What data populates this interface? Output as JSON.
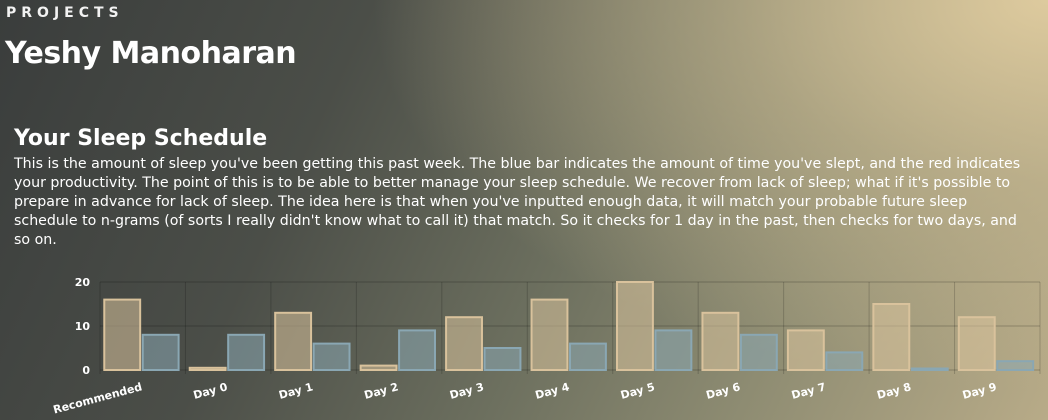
{
  "header": {
    "label": "PROJECTS",
    "title": "Yeshy Manoharan"
  },
  "section": {
    "title": "Your Sleep Schedule",
    "description": "This is the amount of sleep you've been getting this past week. The blue bar indicates the amount of time you've slept, and the red indicates your productivity. The point of this is to be able to better manage your sleep schedule. We recover from lack of sleep; what if it's possible to prepare in advance for lack of sleep. The idea here is that when you've inputted enough data, it will match your probable future sleep schedule to n-grams (of sorts I really didn't know what to call it) that match. So it checks for 1 day in the past, then checks for two days, and so on."
  },
  "chart_data": {
    "type": "bar",
    "categories": [
      "Recommended",
      "Day 0",
      "Day 1",
      "Day 2",
      "Day 3",
      "Day 4",
      "Day 5",
      "Day 6",
      "Day 7",
      "Day 8",
      "Day 9"
    ],
    "series": [
      {
        "values": [
          16,
          0.5,
          13,
          1,
          12,
          16,
          20,
          13,
          9,
          15,
          12
        ],
        "color": "#d9c29c"
      },
      {
        "values": [
          8,
          8,
          6,
          9,
          5,
          6,
          9,
          8,
          4,
          0.3,
          2
        ],
        "color": "#8aa7b3"
      }
    ],
    "ylim": [
      0,
      20
    ],
    "yticks": [
      0,
      10,
      20
    ],
    "grid": true
  }
}
